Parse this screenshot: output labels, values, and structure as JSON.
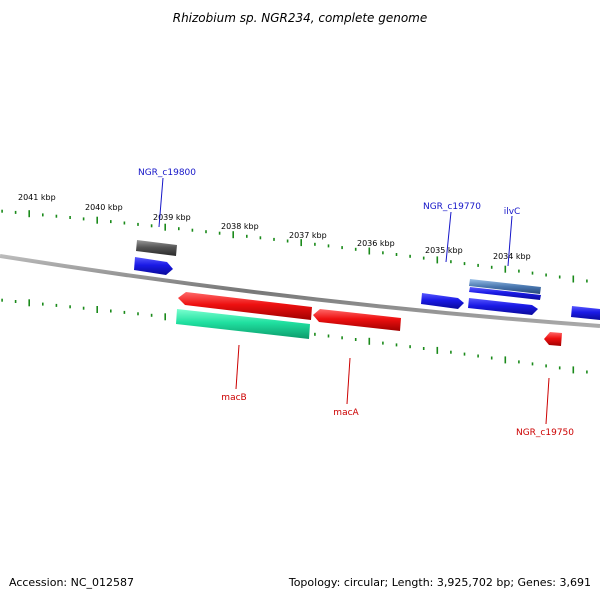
{
  "title": "Rhizobium sp. NGR234, complete genome",
  "accession": "Accession: NC_012587",
  "topology": "Topology: circular; Length: 3,925,702 bp; Genes: 3,691",
  "tick_labels": [
    "2041 kbp",
    "2040 kbp",
    "2039 kbp",
    "2038 kbp",
    "2037 kbp",
    "2036 kbp",
    "2035 kbp",
    "2034 kbp"
  ],
  "gene_labels": {
    "c19800": "NGR_c19800",
    "c19770": "NGR_c19770",
    "ilvC": "ilvC",
    "macB": "macB",
    "macA": "macA",
    "c19750": "NGR_c19750"
  },
  "colors": {
    "forward_label": "#1515c8",
    "reverse_label": "#cc0000",
    "forward_gene": "#1a1ae6",
    "reverse_gene": "#e81010",
    "cds_dark": "#555555",
    "cds_teal": "#20e0a0",
    "rrna_steel": "#4a78b0",
    "tick": "#1a8a1a",
    "backbone": "#888888"
  }
}
